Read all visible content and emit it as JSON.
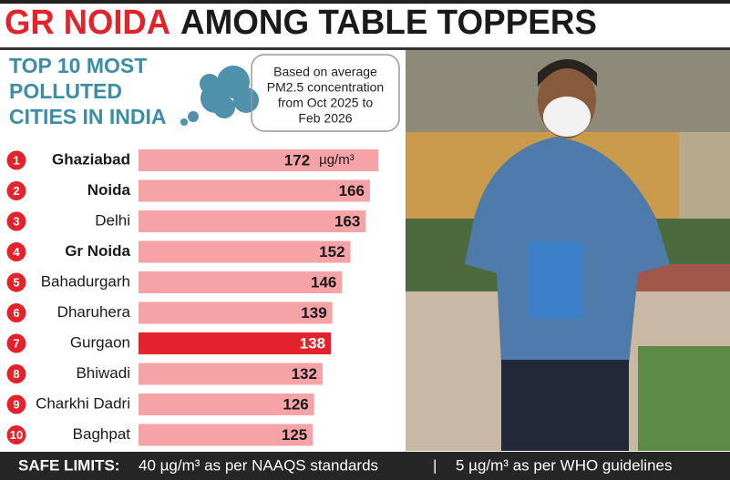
{
  "headline": {
    "highlight": "GR NOIDA",
    "rest": "AMONG TABLE TOPPERS"
  },
  "chart_data": {
    "type": "bar",
    "title": [
      "TOP 10 MOST",
      "POLLUTED",
      "CITIES IN INDIA"
    ],
    "note": [
      "Based on average",
      "PM2.5 concentration",
      "from Oct 2025  to",
      "Feb 2026"
    ],
    "unit": "µg/m³",
    "ranks": [
      1,
      2,
      3,
      4,
      5,
      6,
      7,
      8,
      9,
      10
    ],
    "categories": [
      "Ghaziabad",
      "Noida",
      "Delhi",
      "Gr Noida",
      "Bahadurgarh",
      "Dharuhera",
      "Gurgaon",
      "Bhiwadi",
      "Charkhi Dadri",
      "Baghpat"
    ],
    "bold": [
      true,
      true,
      false,
      true,
      false,
      false,
      false,
      false,
      false,
      false
    ],
    "values": [
      172,
      166,
      163,
      152,
      146,
      139,
      138,
      132,
      126,
      125
    ],
    "colors": [
      "#f5a3a6",
      "#f5a3a6",
      "#f5a3a6",
      "#f5a3a6",
      "#f5a3a6",
      "#f5a3a6",
      "#e3222b",
      "#f5a3a6",
      "#f5a3a6",
      "#f5a3a6"
    ]
  },
  "safe_limits": {
    "label": "SAFE LIMITS:",
    "items": [
      "40 µg/m³ as per NAAQS standards",
      "5 µg/m³ as per WHO guidelines"
    ],
    "separator": "|"
  }
}
